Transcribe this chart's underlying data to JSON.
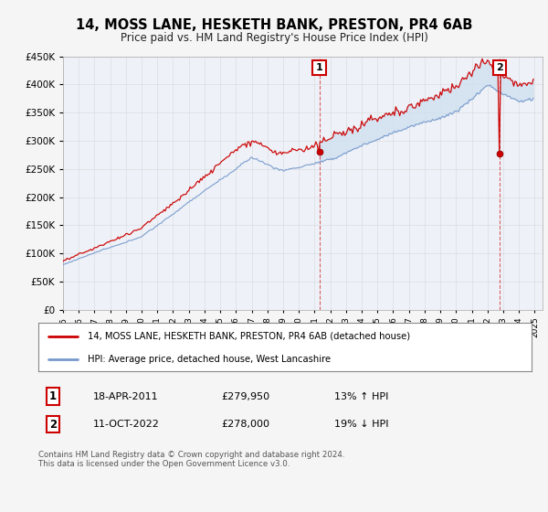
{
  "title": "14, MOSS LANE, HESKETH BANK, PRESTON, PR4 6AB",
  "subtitle": "Price paid vs. HM Land Registry's House Price Index (HPI)",
  "red_label": "14, MOSS LANE, HESKETH BANK, PRESTON, PR4 6AB (detached house)",
  "blue_label": "HPI: Average price, detached house, West Lancashire",
  "sale1_date": "18-APR-2011",
  "sale1_price": 279950,
  "sale1_hpi_pct": "13% ↑ HPI",
  "sale2_date": "11-OCT-2022",
  "sale2_price": 278000,
  "sale2_hpi_pct": "19% ↓ HPI",
  "footer": "Contains HM Land Registry data © Crown copyright and database right 2024.\nThis data is licensed under the Open Government Licence v3.0.",
  "ylim": [
    0,
    450000
  ],
  "yticks": [
    0,
    50000,
    100000,
    150000,
    200000,
    250000,
    300000,
    350000,
    400000,
    450000
  ],
  "red_color": "#cc0000",
  "blue_color": "#7799cc",
  "fill_color": "#d0e0f0",
  "background_color": "#f5f5f5",
  "plot_bg": "#ffffff",
  "grid_color": "#cccccc",
  "sale1_x": 2011.3,
  "sale2_x": 2022.78,
  "xstart": 1995,
  "xend": 2025
}
